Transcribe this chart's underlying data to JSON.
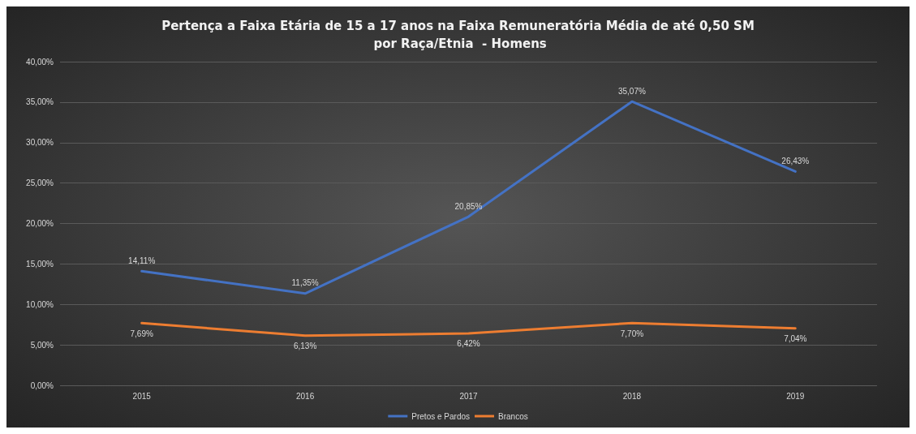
{
  "chart_data": {
    "type": "line",
    "title": "Pertença a Faixa Etária de 15 a 17 anos na Faixa Remuneratória Média de até 0,50 SM por Raça/Etnia  - Homens",
    "categories": [
      "2015",
      "2016",
      "2017",
      "2018",
      "2019"
    ],
    "series": [
      {
        "name": "Pretos e Pardos",
        "color": "#4472c4",
        "values": [
          14.11,
          11.35,
          20.85,
          35.07,
          26.43
        ],
        "value_labels": [
          "14,11%",
          "11,35%",
          "20,85%",
          "35,07%",
          "26,43%"
        ]
      },
      {
        "name": "Brancos",
        "color": "#ed7d31",
        "values": [
          7.69,
          6.13,
          6.42,
          7.7,
          7.04
        ],
        "value_labels": [
          "7,69%",
          "6,13%",
          "6,42%",
          "7,70%",
          "7,04%"
        ]
      }
    ],
    "ylim": [
      0,
      40
    ],
    "yticks": [
      {
        "value": 0,
        "label": "0,00%"
      },
      {
        "value": 5,
        "label": "5,00%"
      },
      {
        "value": 10,
        "label": "10,00%"
      },
      {
        "value": 15,
        "label": "15,00%"
      },
      {
        "value": 20,
        "label": "20,00%"
      },
      {
        "value": 25,
        "label": "25,00%"
      },
      {
        "value": 30,
        "label": "30,00%"
      },
      {
        "value": 35,
        "label": "35,00%"
      },
      {
        "value": 40,
        "label": "40,00%"
      }
    ],
    "grid": "y",
    "legend": "bottom",
    "marker": "none",
    "line_style": "solid"
  }
}
